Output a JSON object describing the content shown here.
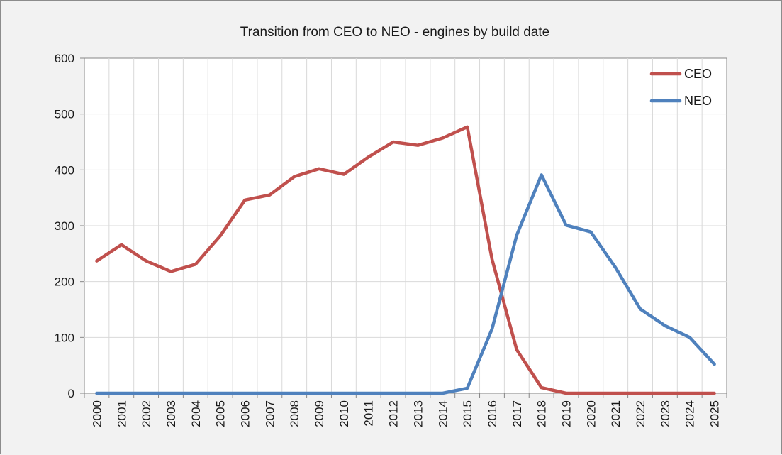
{
  "chart_data": {
    "type": "line",
    "title": "Transition from CEO to NEO - engines by build date",
    "xlabel": "",
    "ylabel": "",
    "categories": [
      "2000",
      "2001",
      "2002",
      "2003",
      "2004",
      "2005",
      "2006",
      "2007",
      "2008",
      "2009",
      "2010",
      "2011",
      "2012",
      "2013",
      "2014",
      "2015",
      "2016",
      "2017",
      "2018",
      "2019",
      "2020",
      "2021",
      "2022",
      "2023",
      "2024",
      "2025"
    ],
    "ylim": [
      0,
      600
    ],
    "yticks": [
      0,
      100,
      200,
      300,
      400,
      500,
      600
    ],
    "grid": true,
    "legend_position": "top-right",
    "series": [
      {
        "name": "CEO",
        "color": "#c0504d",
        "values": [
          237,
          266,
          237,
          218,
          231,
          282,
          346,
          355,
          388,
          402,
          392,
          423,
          450,
          444,
          457,
          477,
          240,
          78,
          10,
          0,
          0,
          0,
          0,
          0,
          0,
          0
        ]
      },
      {
        "name": "NEO",
        "color": "#4f81bd",
        "values": [
          0,
          0,
          0,
          0,
          0,
          0,
          0,
          0,
          0,
          0,
          0,
          0,
          0,
          0,
          0,
          9,
          115,
          283,
          391,
          301,
          289,
          225,
          151,
          121,
          100,
          52
        ]
      }
    ]
  }
}
